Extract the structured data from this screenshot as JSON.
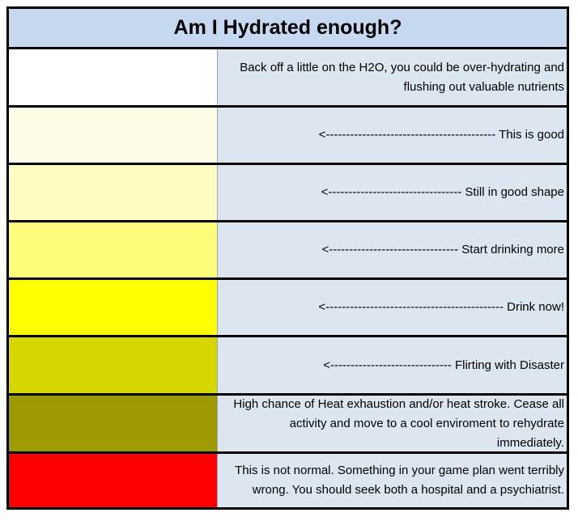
{
  "title": "Am I Hydrated enough?",
  "levels": [
    {
      "color": "#ffffff",
      "text": "Back off a little on the H2O, you could be over-hydrating and flushing out valuable nutrients"
    },
    {
      "color": "#fffde8",
      "text": "<------------------------------------------ This is good"
    },
    {
      "color": "#fffcc4",
      "text": "<--------------------------------- Still in good shape"
    },
    {
      "color": "#fdfd7b",
      "text": "<-------------------------------- Start drinking more"
    },
    {
      "color": "#ffff00",
      "text": "<-------------------------------------------- Drink now!"
    },
    {
      "color": "#d6d600",
      "text": "<------------------------------ Flirting with Disaster"
    },
    {
      "color": "#9c9a00",
      "text": "High chance of Heat exhaustion and/or heat stroke. Cease all activity and move to a cool enviroment to rehydrate immediately."
    },
    {
      "color": "#ff0000",
      "text": "This is not normal.  Something in your game plan went terribly wrong.  You should seek both a hospital and a psychiatrist."
    }
  ]
}
